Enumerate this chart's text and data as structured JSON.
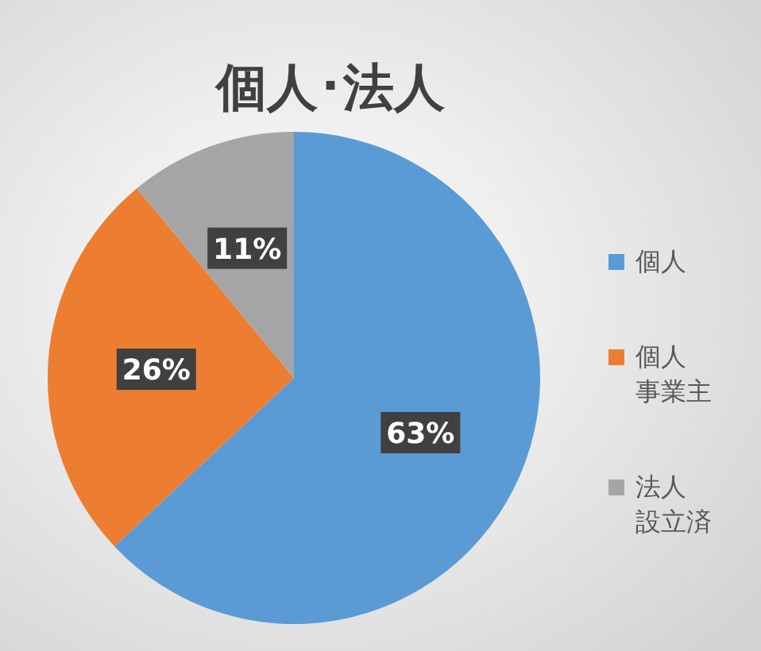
{
  "chart_data": {
    "type": "pie",
    "title": "個人･法人",
    "categories": [
      "個人",
      "個人事業主",
      "法人設立済"
    ],
    "values": [
      63,
      26,
      11
    ],
    "value_labels": [
      "63%",
      "26%",
      "11%"
    ],
    "colors": [
      "#5b9bd5",
      "#ed7d31",
      "#a5a5a5"
    ],
    "legend": "right"
  }
}
